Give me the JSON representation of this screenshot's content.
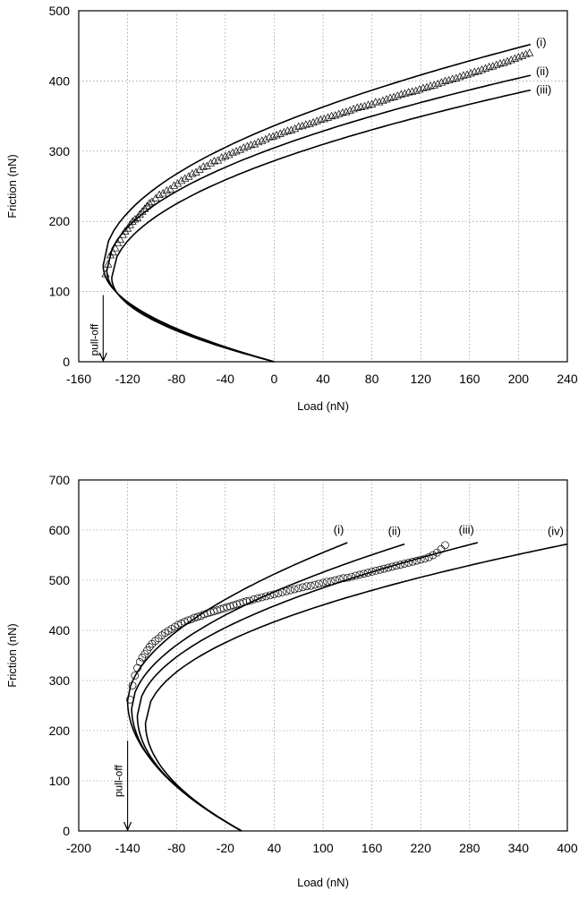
{
  "chart_data": [
    {
      "type": "scatter",
      "xlabel": "Load (nN)",
      "ylabel": "Friction (nN)",
      "xlim": [
        -160,
        240
      ],
      "ylim": [
        0,
        500
      ],
      "xticks": [
        -160,
        -120,
        -80,
        -40,
        0,
        40,
        80,
        120,
        160,
        200,
        240
      ],
      "yticks": [
        0,
        100,
        200,
        300,
        400,
        500
      ],
      "xtick_labels": [
        "-160",
        "-120",
        "-80",
        "-40",
        "0",
        "40",
        "80",
        "120",
        "160",
        "200",
        "240"
      ],
      "ytick_labels": [
        "0",
        "100",
        "200",
        "300",
        "400",
        "500"
      ],
      "grid": true,
      "marker": "triangle",
      "points": {
        "x": [
          -138,
          -136,
          -134,
          -132,
          -130,
          -128,
          -126,
          -124,
          -122,
          -120,
          -118,
          -116,
          -114,
          -112,
          -110,
          -108,
          -106,
          -104,
          -102,
          -100,
          -97,
          -94,
          -91,
          -88,
          -85,
          -82,
          -79,
          -76,
          -73,
          -70,
          -67,
          -64,
          -61,
          -58,
          -55,
          -52,
          -49,
          -46,
          -43,
          -40,
          -37,
          -34,
          -31,
          -28,
          -25,
          -22,
          -19,
          -16,
          -13,
          -10,
          -7,
          -4,
          -1,
          2,
          5,
          8,
          11,
          14,
          17,
          20,
          23,
          26,
          29,
          32,
          35,
          38,
          41,
          44,
          47,
          50,
          53,
          56,
          59,
          62,
          65,
          68,
          71,
          74,
          77,
          80,
          83,
          86,
          89,
          92,
          95,
          98,
          101,
          104,
          107,
          110,
          113,
          116,
          119,
          122,
          125,
          128,
          131,
          134,
          137,
          140,
          143,
          146,
          149,
          152,
          155,
          158,
          161,
          164,
          167,
          170,
          173,
          176,
          179,
          182,
          185,
          188,
          191,
          194,
          197,
          200,
          203,
          206,
          209
        ],
        "y": [
          125,
          139,
          152,
          156,
          162,
          169,
          174,
          181,
          186,
          190,
          195,
          200,
          203,
          205,
          210,
          214,
          218,
          222,
          226,
          228,
          233,
          238,
          240,
          244,
          246,
          251,
          254,
          258,
          261,
          264,
          268,
          270,
          274,
          278,
          279,
          283,
          286,
          287,
          291,
          293,
          295,
          298,
          300,
          302,
          305,
          307,
          309,
          310,
          313,
          315,
          317,
          320,
          321,
          323,
          325,
          327,
          329,
          330,
          332,
          335,
          336,
          338,
          339,
          341,
          343,
          345,
          346,
          348,
          350,
          351,
          353,
          355,
          356,
          358,
          360,
          362,
          363,
          364,
          366,
          367,
          370,
          370,
          372,
          374,
          376,
          377,
          379,
          381,
          382,
          384,
          385,
          386,
          388,
          390,
          391,
          393,
          394,
          396,
          398,
          400,
          401,
          403,
          404,
          406,
          408,
          409,
          411,
          413,
          414,
          416,
          418,
          420,
          421,
          423,
          425,
          426,
          428,
          430,
          432,
          434,
          436,
          438,
          440
        ]
      },
      "curves": [
        {
          "label": "(i)",
          "pull_off": -140,
          "Lc": -140,
          "Fc": 137,
          "exponent": 0.5
        },
        {
          "label": "(ii)",
          "pull_off": -140,
          "Lc": -137,
          "Fc": 130,
          "exponent": 0.5
        },
        {
          "label": "(iii)",
          "pull_off": -140,
          "Lc": -133,
          "Fc": 120,
          "exponent": 0.5
        }
      ],
      "curve_labels": [
        "(i)",
        "(ii)",
        "(iii)"
      ],
      "annotation": "pull-off",
      "pull_off_x": -140
    },
    {
      "type": "scatter",
      "xlabel": "Load (nN)",
      "ylabel": "Friction (nN)",
      "xlim": [
        -200,
        400
      ],
      "ylim": [
        0,
        700
      ],
      "xticks": [
        -200,
        -140,
        -80,
        -20,
        40,
        100,
        160,
        220,
        280,
        340,
        400
      ],
      "yticks": [
        0,
        100,
        200,
        300,
        400,
        500,
        600,
        700
      ],
      "xtick_labels": [
        "-200",
        "-140",
        "-80",
        "-20",
        "40",
        "100",
        "160",
        "220",
        "280",
        "340",
        "400"
      ],
      "ytick_labels": [
        "0",
        "100",
        "200",
        "300",
        "400",
        "500",
        "600",
        "700"
      ],
      "grid": true,
      "marker": "circle",
      "points": {
        "x": [
          -137,
          -134,
          -131,
          -128,
          -125,
          -122,
          -119,
          -116,
          -113,
          -110,
          -106,
          -102,
          -98,
          -94,
          -90,
          -86,
          -82,
          -78,
          -74,
          -70,
          -66,
          -62,
          -58,
          -54,
          -50,
          -46,
          -42,
          -38,
          -34,
          -30,
          -26,
          -22,
          -18,
          -14,
          -10,
          -6,
          -2,
          2,
          6,
          10,
          15,
          20,
          25,
          30,
          35,
          40,
          45,
          50,
          55,
          60,
          65,
          70,
          75,
          80,
          85,
          90,
          95,
          100,
          105,
          110,
          115,
          120,
          125,
          130,
          135,
          140,
          145,
          150,
          155,
          160,
          165,
          170,
          175,
          180,
          185,
          190,
          195,
          200,
          205,
          210,
          215,
          220,
          225,
          230,
          235,
          240,
          245,
          250
        ],
        "y": [
          262,
          290,
          310,
          325,
          337,
          346,
          353,
          360,
          367,
          373,
          379,
          384,
          390,
          395,
          399,
          403,
          407,
          411,
          414,
          417,
          420,
          422,
          425,
          427,
          429,
          432,
          434,
          436,
          438,
          440,
          442,
          444,
          446,
          448,
          450,
          452,
          454,
          456,
          458,
          459,
          462,
          464,
          466,
          468,
          470,
          472,
          474,
          476,
          478,
          480,
          482,
          484,
          486,
          488,
          489,
          491,
          493,
          495,
          497,
          498,
          500,
          502,
          504,
          505,
          507,
          509,
          511,
          513,
          515,
          517,
          519,
          521,
          523,
          525,
          527,
          529,
          531,
          533,
          535,
          537,
          539,
          541,
          543,
          546,
          550,
          555,
          562,
          570
        ]
      },
      "curves": [
        {
          "label": "(i)",
          "pull_off": -140,
          "Lc": -140,
          "Fc": 260,
          "exponent": 0.55
        },
        {
          "label": "(ii)",
          "pull_off": -140,
          "Lc": -135,
          "Fc": 245,
          "exponent": 0.53
        },
        {
          "label": "(iii)",
          "pull_off": -140,
          "Lc": -128,
          "Fc": 230,
          "exponent": 0.5
        },
        {
          "label": "(iv)",
          "pull_off": -140,
          "Lc": -118,
          "Fc": 215,
          "exponent": 0.48
        }
      ],
      "curve_labels": [
        "(i)",
        "(ii)",
        "(iii)",
        "(iv)"
      ],
      "annotation": "pull-off",
      "pull_off_x": -140
    }
  ]
}
